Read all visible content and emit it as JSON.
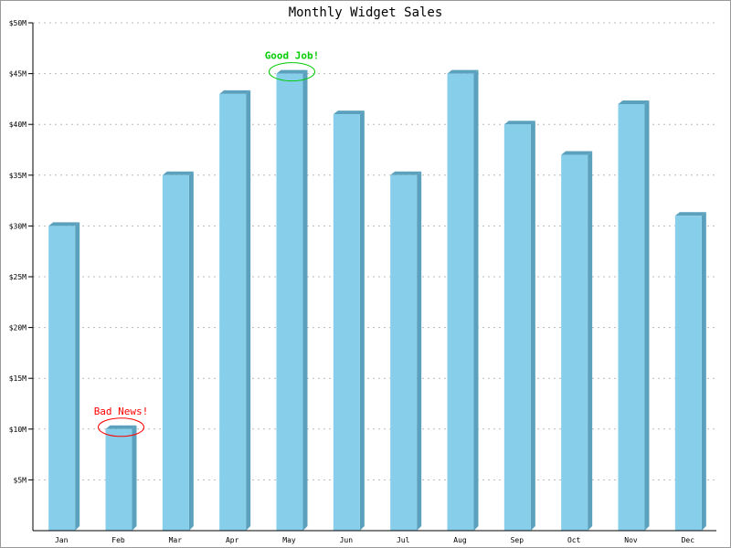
{
  "chart_data": {
    "type": "bar",
    "title": "Monthly Widget Sales",
    "xlabel": "",
    "ylabel": "",
    "categories": [
      "Jan",
      "Feb",
      "Mar",
      "Apr",
      "May",
      "Jun",
      "Jul",
      "Aug",
      "Sep",
      "Oct",
      "Nov",
      "Dec"
    ],
    "values": [
      30,
      10,
      35,
      43,
      45,
      41,
      35,
      45,
      40,
      37,
      42,
      31
    ],
    "unit": "$M",
    "ylim": [
      0,
      50
    ],
    "yticks": [
      5,
      10,
      15,
      20,
      25,
      30,
      35,
      40,
      45,
      50
    ],
    "ytick_labels": [
      "$5M",
      "$10M",
      "$15M",
      "$20M",
      "$25M",
      "$30M",
      "$35M",
      "$40M",
      "$45M",
      "$50M"
    ],
    "grid": true,
    "style": "3d-bar",
    "annotations": [
      {
        "category": "Feb",
        "value": 10,
        "text": "Bad News!",
        "color": "#ff0000"
      },
      {
        "category": "May",
        "value": 45,
        "text": "Good Job!",
        "color": "#00cc00"
      }
    ],
    "colors": {
      "bar_front": "#87ceeb",
      "bar_side": "#5ba1be",
      "grid": "#bbbbbb"
    }
  }
}
